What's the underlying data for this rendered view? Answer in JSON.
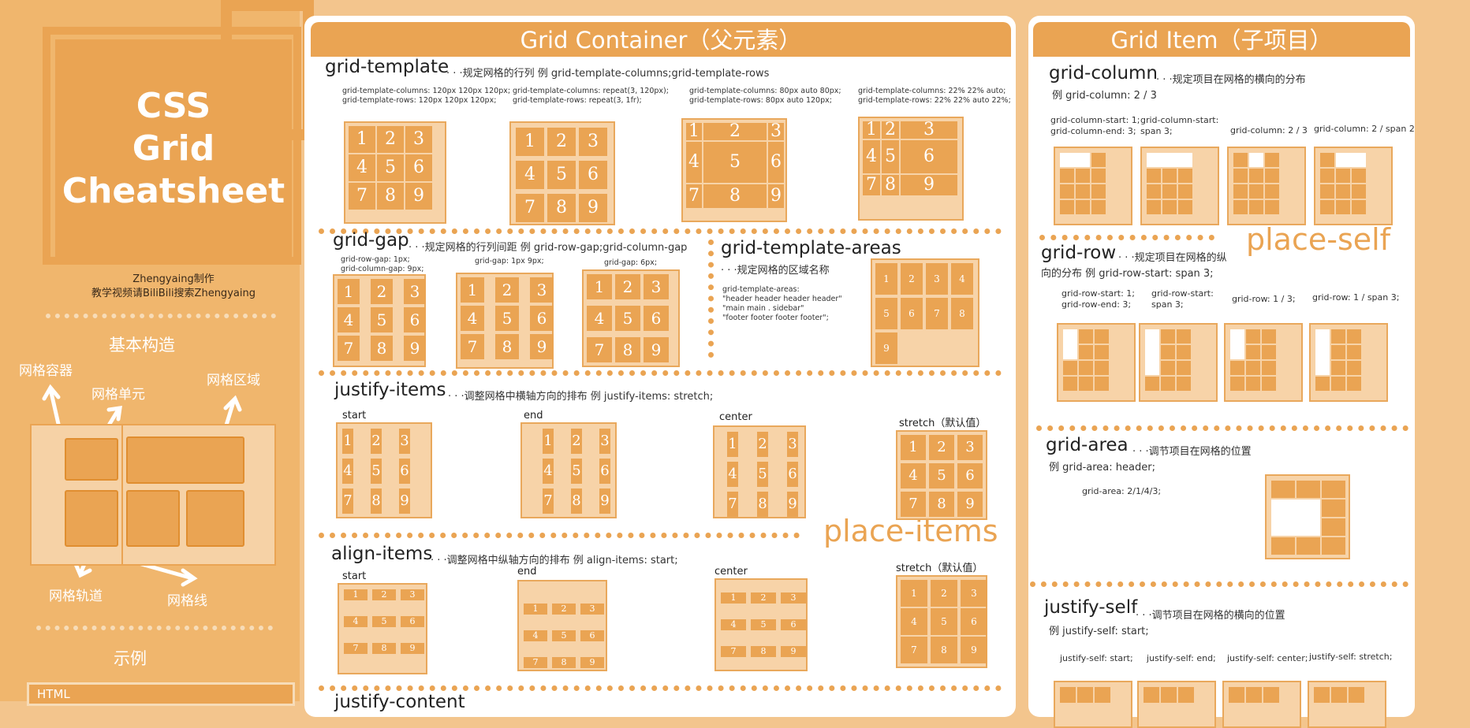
{
  "sidebar": {
    "title_lines": [
      "CSS",
      "Grid",
      "Cheatsheet"
    ],
    "author_line1": "Zhengyaing制作",
    "author_line2": "教学视频请BiliBili搜索Zhengyaing",
    "basic_heading": "基本构造",
    "labels": {
      "container": "网格容器",
      "cell": "网格单元",
      "area": "网格区域",
      "track": "网格轨道",
      "line": "网格线"
    },
    "example_heading": "示例",
    "html_label": "HTML"
  },
  "container_panel": {
    "title": "Grid Container（父元素）",
    "grid_template": {
      "title": "grid-template",
      "desc": "· · ·规定网格的行列  例  grid-template-columns;grid-template-rows",
      "examples": [
        {
          "l1": "grid-template-columns: 120px 120px 120px;",
          "l2": "grid-template-rows: 120px 120px 120px;"
        },
        {
          "l1": "grid-template-columns: repeat(3, 120px);",
          "l2": "grid-template-rows: repeat(3, 1fr);"
        },
        {
          "l1": "grid-template-columns: 80px auto 80px;",
          "l2": "grid-template-rows: 80px auto 120px;"
        },
        {
          "l1": "grid-template-columns: 22% 22% auto;",
          "l2": "grid-template-rows: 22% 22% auto 22%;"
        }
      ]
    },
    "grid_gap": {
      "title": "grid-gap",
      "desc": "· · ·规定网格的行列间距  例  grid-row-gap;grid-column-gap",
      "examples": [
        {
          "l1": "grid-row-gap: 1px;",
          "l2": "grid-column-gap: 9px;"
        },
        {
          "l1": "grid-gap: 1px 9px;",
          "l2": ""
        },
        {
          "l1": "grid-gap: 6px;",
          "l2": ""
        }
      ]
    },
    "grid_template_areas": {
      "title": "grid-template-areas",
      "desc": "· · ·规定网格的区域名称",
      "code": [
        "grid-template-areas:",
        "  \"header header header header\"",
        "  \"main main . sidebar\"",
        "  \"footer footer footer footer\";"
      ]
    },
    "justify_items": {
      "title": "justify-items",
      "desc": "· · ·调整网格中横轴方向的排布  例  justify-items: stretch;",
      "labels": [
        "start",
        "end",
        "center",
        "stretch（默认值）"
      ]
    },
    "place_items": "place-items",
    "align_items": {
      "title": "align-items",
      "desc": "· · ·调整网格中纵轴方向的排布  例  align-items: start;",
      "labels": [
        "start",
        "end",
        "center",
        "stretch（默认值）"
      ]
    },
    "next_title": "justify-content"
  },
  "item_panel": {
    "title": "Grid Item（子项目）",
    "grid_column": {
      "title": "grid-column",
      "desc": "· · ·规定项目在网格的横向的分布",
      "example": "例  grid-column: 2 / 3",
      "labels": [
        {
          "l1": "grid-column-start: 1;",
          "l2": "grid-column-end: 3;"
        },
        {
          "l1": "grid-column-start:",
          "l2": " span 3;"
        },
        {
          "l1": "grid-column: 2 / 3",
          "l2": ""
        },
        {
          "l1": "grid-column: 2 / span 2",
          "l2": ""
        }
      ]
    },
    "place_self": "place-self",
    "grid_row": {
      "title": "grid-row",
      "desc": "· · ·规定项目在网格的纵",
      "desc2": "向的分布  例  grid-row-start: span 3;",
      "labels": [
        {
          "l1": "grid-row-start: 1;",
          "l2": "grid-row-end: 3;"
        },
        {
          "l1": "grid-row-start:",
          "l2": "  span 3;"
        },
        {
          "l1": "grid-row: 1 / 3;",
          "l2": ""
        },
        {
          "l1": "grid-row: 1 / span 3;",
          "l2": ""
        }
      ]
    },
    "grid_area": {
      "title": "grid-area",
      "desc": "· · ·调节项目在网格的位置",
      "example": "例  grid-area: header;",
      "code": "grid-area: 2/1/4/3;"
    },
    "justify_self": {
      "title": "justify-self",
      "desc": "· · ·调节项目在网格的横向的位置",
      "example": "例  justify-self: start;",
      "labels": [
        "justify-self: start;",
        "justify-self: end;",
        "justify-self: center;",
        "justify-self: stretch;"
      ]
    }
  },
  "colors": {
    "accent": "#eaa453",
    "light": "#f7d3a8",
    "page": "#f3c58d"
  }
}
